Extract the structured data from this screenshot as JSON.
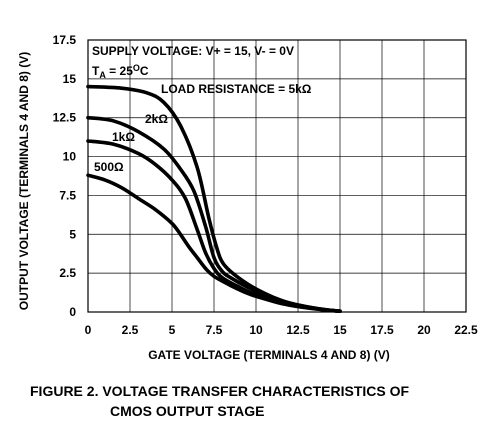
{
  "chart_data": {
    "type": "line",
    "xlabel": "GATE VOLTAGE (TERMINALS 4 AND 8) (V)",
    "ylabel": "OUTPUT VOLTAGE (TERMINALS 4 AND 8) (V)",
    "xlim": [
      0,
      22.5
    ],
    "ylim": [
      0,
      17.5
    ],
    "xticks": [
      "0",
      "2.5",
      "5",
      "7.5",
      "10",
      "12.5",
      "15",
      "17.5",
      "20",
      "22.5"
    ],
    "yticks": [
      "0",
      "2.5",
      "5",
      "7.5",
      "10",
      "12.5",
      "15",
      "17.5"
    ],
    "grid": true,
    "annotations": {
      "supply": "SUPPLY VOLTAGE: V+ = 15, V- = 0V",
      "temp_prefix": "T",
      "temp_sub": "A",
      "temp_mid": " = 25",
      "temp_sup": "O",
      "temp_suffix": "C",
      "load": "LOAD RESISTANCE = 5kΩ"
    },
    "series": [
      {
        "name": "5kΩ",
        "x": [
          0,
          2,
          3.5,
          4.5,
          5.5,
          6.5,
          7.2,
          7.7,
          8.0,
          8.5,
          9.5,
          10.5,
          11.5,
          12.5,
          13.5,
          14.5,
          15
        ],
        "y": [
          14.5,
          14.4,
          14.1,
          13.5,
          12.0,
          9.3,
          6.0,
          4.0,
          3.2,
          2.6,
          1.8,
          1.2,
          0.75,
          0.45,
          0.25,
          0.1,
          0.05
        ]
      },
      {
        "name": "2kΩ",
        "x": [
          0,
          1.5,
          3,
          4.5,
          5.5,
          6.3,
          7.0,
          7.5,
          8.0,
          8.5,
          9.5,
          10.5,
          11.5,
          12.5,
          13.5,
          14.5,
          15
        ],
        "y": [
          12.5,
          12.3,
          11.6,
          10.5,
          9.2,
          7.8,
          5.5,
          3.5,
          2.6,
          2.2,
          1.6,
          1.1,
          0.7,
          0.45,
          0.25,
          0.1,
          0.05
        ]
      },
      {
        "name": "1kΩ",
        "x": [
          0,
          1.5,
          3,
          4,
          5,
          5.8,
          6.5,
          7.0,
          7.5,
          8.0,
          9.0,
          10.0,
          11.0,
          12.0,
          13.0,
          14.0,
          15
        ],
        "y": [
          11.0,
          10.8,
          10.2,
          9.5,
          8.5,
          7.3,
          5.3,
          3.8,
          2.8,
          2.2,
          1.6,
          1.1,
          0.75,
          0.5,
          0.3,
          0.15,
          0.05
        ]
      },
      {
        "name": "500Ω",
        "x": [
          0,
          1,
          2,
          3,
          4,
          5,
          5.5,
          6.0,
          6.5,
          7.0,
          7.5,
          8.5,
          9.5,
          10.5,
          11.5,
          12.5,
          13.5,
          14.5,
          15
        ],
        "y": [
          8.8,
          8.5,
          8.0,
          7.3,
          6.6,
          5.7,
          5.0,
          4.2,
          3.5,
          2.8,
          2.3,
          1.7,
          1.2,
          0.85,
          0.55,
          0.35,
          0.2,
          0.1,
          0.05
        ]
      }
    ],
    "series_labels": [
      "2kΩ",
      "1kΩ",
      "500Ω"
    ]
  },
  "caption": {
    "line1": "FIGURE 2.  VOLTAGE TRANSFER CHARACTERISTICS OF",
    "line2": "CMOS OUTPUT STAGE"
  }
}
